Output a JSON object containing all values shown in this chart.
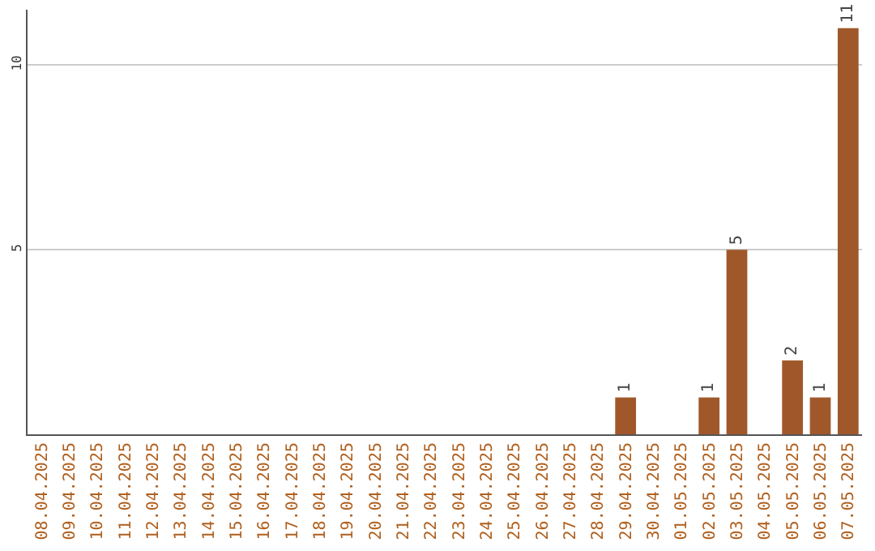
{
  "chart_data": {
    "type": "bar",
    "categories": [
      "08.04.2025",
      "09.04.2025",
      "10.04.2025",
      "11.04.2025",
      "12.04.2025",
      "13.04.2025",
      "14.04.2025",
      "15.04.2025",
      "16.04.2025",
      "17.04.2025",
      "18.04.2025",
      "19.04.2025",
      "20.04.2025",
      "21.04.2025",
      "22.04.2025",
      "23.04.2025",
      "24.04.2025",
      "25.04.2025",
      "26.04.2025",
      "27.04.2025",
      "28.04.2025",
      "29.04.2025",
      "30.04.2025",
      "01.05.2025",
      "02.05.2025",
      "03.05.2025",
      "04.05.2025",
      "05.05.2025",
      "06.05.2025",
      "07.05.2025"
    ],
    "values": [
      0,
      0,
      0,
      0,
      0,
      0,
      0,
      0,
      0,
      0,
      0,
      0,
      0,
      0,
      0,
      0,
      0,
      0,
      0,
      0,
      0,
      1,
      0,
      0,
      1,
      5,
      0,
      2,
      1,
      11
    ],
    "value_labels": [
      null,
      null,
      null,
      null,
      null,
      null,
      null,
      null,
      null,
      null,
      null,
      null,
      null,
      null,
      null,
      null,
      null,
      null,
      null,
      null,
      null,
      "1",
      null,
      null,
      "1",
      "5",
      null,
      "2",
      "1",
      "11"
    ],
    "color": "#a0582b",
    "ylim": [
      0,
      11.5
    ],
    "yticks": [
      5,
      10
    ],
    "grid": "y",
    "legend": false
  }
}
